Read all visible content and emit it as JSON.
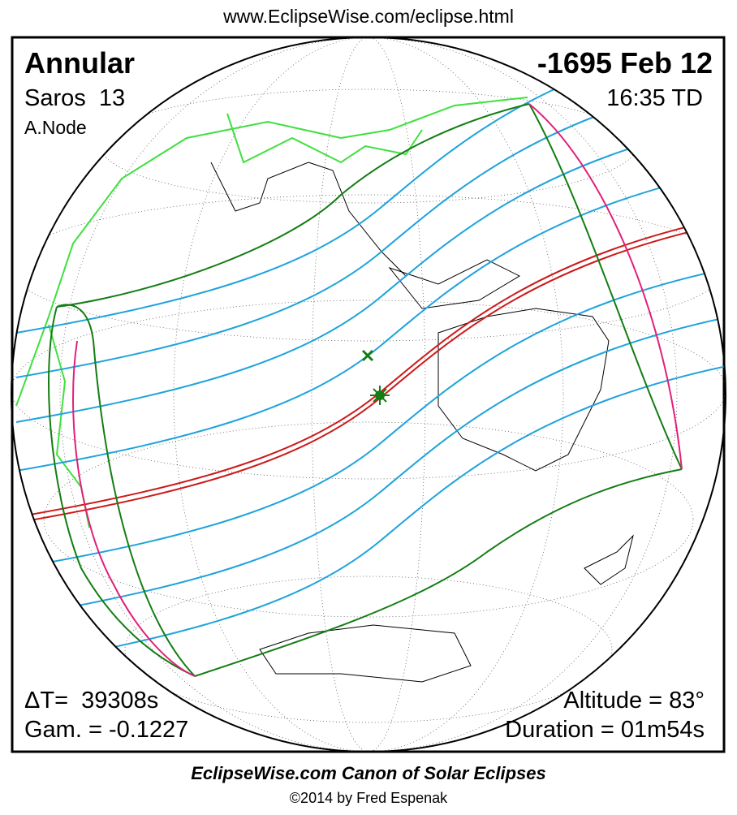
{
  "header": {
    "url": "www.EclipseWise.com/eclipse.html"
  },
  "panel": {
    "top_left": {
      "type": "Annular",
      "saros": "Saros  13",
      "node": "A.Node"
    },
    "top_right": {
      "date": "-1695 Feb 12",
      "time": "16:35 TD"
    },
    "bottom_left": {
      "delta_t": "ΔT=  39308s",
      "gamma": "Gam. = -0.1227"
    },
    "bottom_right": {
      "altitude": "Altitude = 83°",
      "duration": "Duration = 01m54s"
    }
  },
  "footer": {
    "title": "EclipseWise.com Canon of Solar Eclipses",
    "copyright": "©2014 by Fred Espenak"
  }
}
